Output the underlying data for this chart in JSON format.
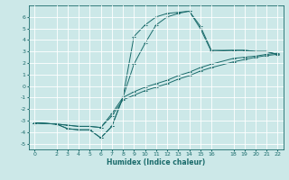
{
  "xlabel": "Humidex (Indice chaleur)",
  "bg_color": "#cce8e8",
  "grid_color": "#ffffff",
  "line_color": "#1a6b6b",
  "xlim": [
    -0.5,
    22.5
  ],
  "ylim": [
    -5.5,
    7.0
  ],
  "xticks": [
    0,
    2,
    3,
    4,
    5,
    6,
    7,
    8,
    9,
    10,
    11,
    12,
    13,
    14,
    15,
    16,
    18,
    19,
    20,
    21,
    22
  ],
  "yticks": [
    -5,
    -4,
    -3,
    -2,
    -1,
    0,
    1,
    2,
    3,
    4,
    5,
    6
  ],
  "line1_x": [
    0,
    2,
    3,
    4,
    5,
    6,
    7,
    8,
    9,
    10,
    11,
    12,
    13,
    14,
    15,
    16,
    18,
    19,
    20,
    21,
    22
  ],
  "line1_y": [
    -3.2,
    -3.3,
    -3.7,
    -3.8,
    -3.8,
    -4.5,
    -3.5,
    -1.0,
    4.3,
    5.3,
    6.0,
    6.3,
    6.4,
    6.5,
    5.0,
    3.0,
    3.1,
    3.1,
    3.0,
    3.0,
    2.7
  ],
  "line2_x": [
    0,
    2,
    3,
    4,
    5,
    6,
    7,
    8,
    9,
    10,
    11,
    12,
    13,
    14,
    15,
    16,
    18,
    19,
    20,
    21,
    22
  ],
  "line2_y": [
    -3.2,
    -3.3,
    -3.7,
    -3.8,
    -3.8,
    -4.5,
    -3.5,
    -1.0,
    1.9,
    3.7,
    5.3,
    6.0,
    6.3,
    6.5,
    5.2,
    3.1,
    3.1,
    3.1,
    3.0,
    3.0,
    2.75
  ],
  "line3_x": [
    0,
    2,
    3,
    4,
    5,
    6,
    7,
    8,
    9,
    10,
    11,
    12,
    13,
    14,
    15,
    16,
    18,
    19,
    20,
    21,
    22
  ],
  "line3_y": [
    -3.2,
    -3.3,
    -3.4,
    -3.5,
    -3.5,
    -3.6,
    -2.6,
    -1.2,
    -0.8,
    -0.4,
    -0.1,
    0.2,
    0.6,
    0.9,
    1.3,
    1.6,
    2.1,
    2.3,
    2.5,
    2.65,
    2.75
  ],
  "line4_x": [
    0,
    2,
    3,
    4,
    5,
    6,
    7,
    8,
    9,
    10,
    11,
    12,
    13,
    14,
    15,
    16,
    18,
    19,
    20,
    21,
    22
  ],
  "line4_y": [
    -3.2,
    -3.3,
    -3.4,
    -3.5,
    -3.5,
    -3.6,
    -2.4,
    -1.0,
    -0.5,
    -0.1,
    0.2,
    0.5,
    0.9,
    1.2,
    1.6,
    1.9,
    2.4,
    2.5,
    2.6,
    2.75,
    2.85
  ]
}
